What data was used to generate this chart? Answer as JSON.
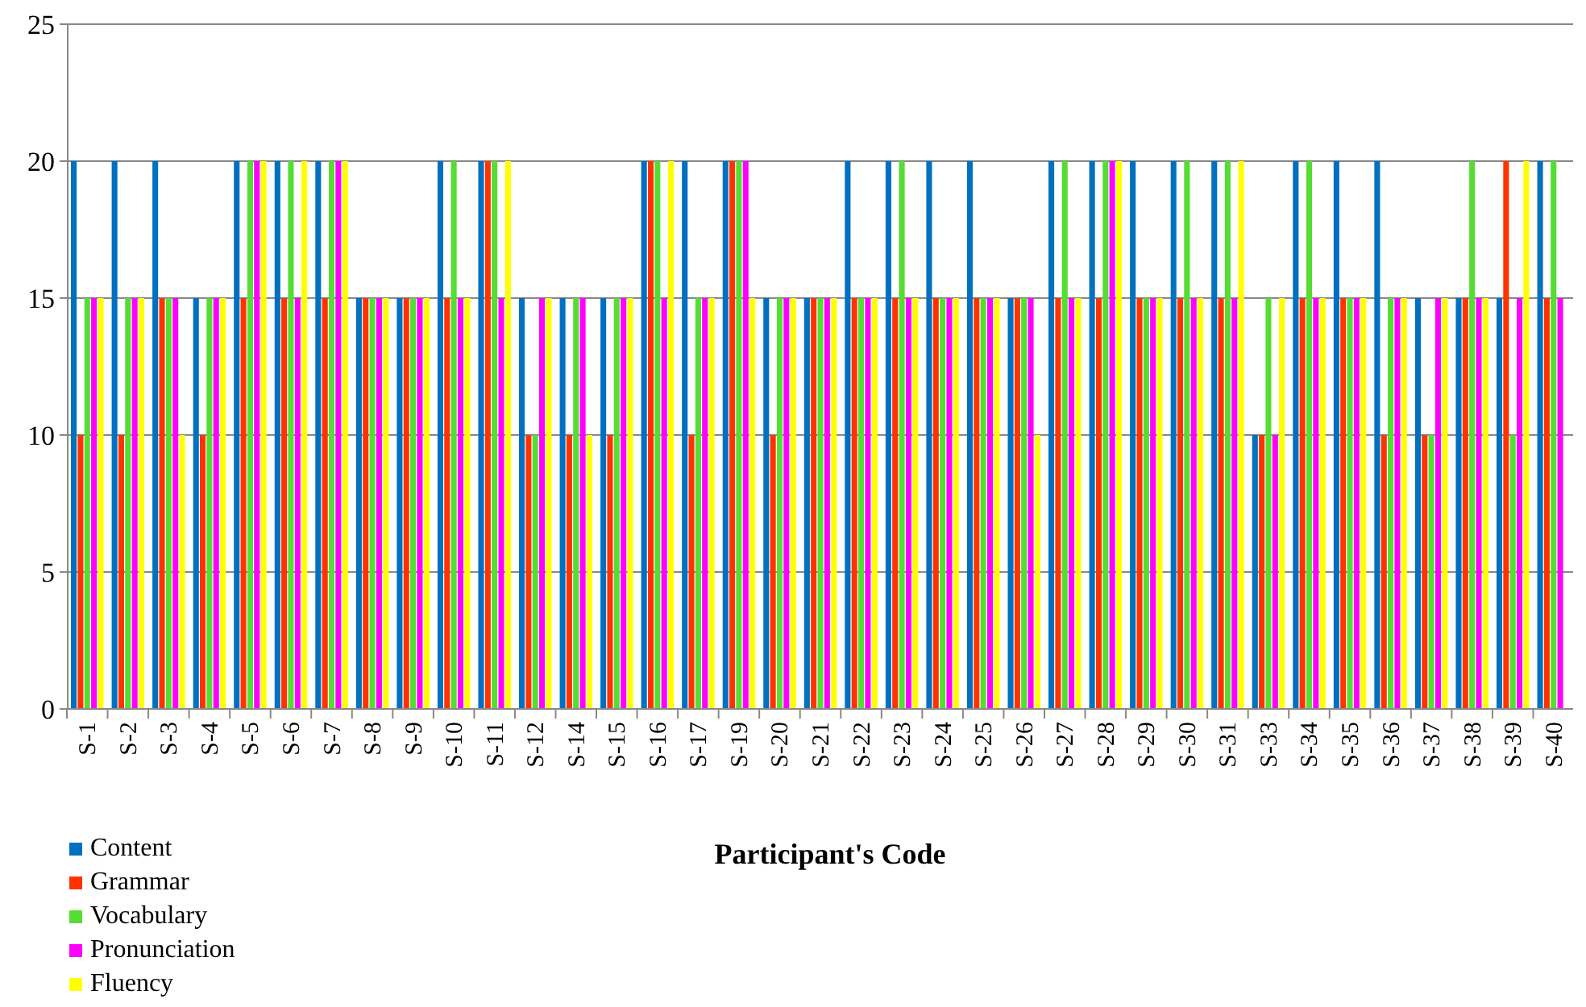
{
  "chart_data": {
    "type": "bar",
    "xlabel": "Participant's Code",
    "categories": [
      "S-1",
      "S-2",
      "S-3",
      "S-4",
      "S-5",
      "S-6",
      "S-7",
      "S-8",
      "S-9",
      "S-10",
      "S-11",
      "S-12",
      "S-14",
      "S-15",
      "S-16",
      "S-17",
      "S-19",
      "S-20",
      "S-21",
      "S-22",
      "S-23",
      "S-24",
      "S-25",
      "S-26",
      "S-27",
      "S-28",
      "S-29",
      "S-30",
      "S-31",
      "S-33",
      "S-34",
      "S-35",
      "S-36",
      "S-37",
      "S-38",
      "S-39",
      "S-40"
    ],
    "series": [
      {
        "name": "Content",
        "color": "#0070c0",
        "values": [
          20,
          20,
          20,
          15,
          20,
          20,
          20,
          15,
          15,
          20,
          20,
          15,
          15,
          15,
          20,
          20,
          20,
          15,
          15,
          20,
          20,
          20,
          20,
          15,
          20,
          20,
          20,
          20,
          20,
          10,
          20,
          20,
          20,
          15,
          15,
          15,
          20
        ]
      },
      {
        "name": "Grammar",
        "color": "#ff3300",
        "values": [
          10,
          10,
          15,
          10,
          15,
          15,
          15,
          15,
          15,
          15,
          20,
          10,
          10,
          10,
          20,
          10,
          20,
          10,
          15,
          15,
          15,
          15,
          15,
          15,
          15,
          15,
          15,
          15,
          15,
          10,
          15,
          15,
          10,
          10,
          15,
          20,
          15
        ]
      },
      {
        "name": "Vocabulary",
        "color": "#55dd33",
        "values": [
          15,
          15,
          15,
          15,
          20,
          20,
          20,
          15,
          15,
          20,
          20,
          10,
          15,
          15,
          20,
          15,
          20,
          15,
          15,
          15,
          20,
          15,
          15,
          15,
          20,
          20,
          15,
          20,
          20,
          15,
          20,
          15,
          15,
          10,
          20,
          10,
          20
        ]
      },
      {
        "name": "Pronunciation",
        "color": "#ff00ff",
        "values": [
          15,
          15,
          15,
          15,
          20,
          15,
          20,
          15,
          15,
          15,
          15,
          15,
          15,
          15,
          15,
          15,
          20,
          15,
          15,
          15,
          15,
          15,
          15,
          15,
          15,
          20,
          15,
          15,
          15,
          10,
          15,
          15,
          15,
          15,
          15,
          15,
          15
        ]
      },
      {
        "name": "Fluency",
        "color": "#ffff00",
        "values": [
          15,
          15,
          10,
          15,
          20,
          20,
          20,
          15,
          15,
          15,
          20,
          15,
          10,
          15,
          20,
          15,
          15,
          15,
          15,
          15,
          15,
          15,
          15,
          10,
          15,
          20,
          15,
          15,
          20,
          15,
          15,
          15,
          15,
          15,
          15,
          20,
          null
        ]
      }
    ],
    "ylim": [
      0,
      25
    ],
    "yticks": [
      0,
      5,
      10,
      15,
      20,
      25
    ],
    "grid": "y",
    "legend": "bottom left"
  }
}
